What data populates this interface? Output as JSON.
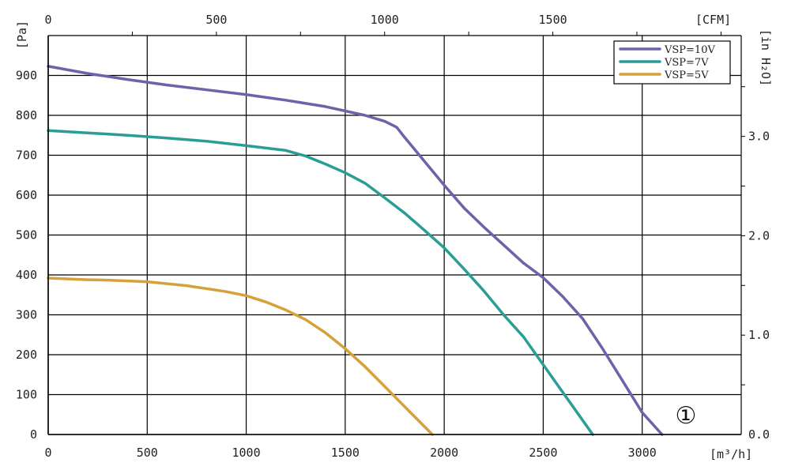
{
  "chart_data": {
    "type": "line",
    "xlabel_bottom": "[m³/h]",
    "xlabel_top": "[CFM]",
    "ylabel_left": "[Pa]",
    "ylabel_right": "[in H₂O]",
    "xlim": [
      0,
      3500
    ],
    "ylim": [
      0,
      1000
    ],
    "x_ticks": [
      "0",
      "500",
      "1000",
      "1500",
      "2000",
      "2500",
      "3000"
    ],
    "y_ticks": [
      "0",
      "100",
      "200",
      "300",
      "400",
      "500",
      "600",
      "700",
      "800",
      "900"
    ],
    "top_ticks": [
      "0",
      "500",
      "1000",
      "1500"
    ],
    "right_ticks": [
      "0.0",
      "1.0",
      "2.0",
      "3.0"
    ],
    "grid": true,
    "legend_position": "top-right",
    "marker_label": "①",
    "series": [
      {
        "name": "VSP=10V",
        "color": "#6b64a8",
        "x": [
          0,
          200,
          400,
          600,
          800,
          1000,
          1200,
          1400,
          1600,
          1700,
          1760,
          1800,
          1900,
          2000,
          2100,
          2200,
          2300,
          2400,
          2500,
          2600,
          2700,
          2800,
          2900,
          3000,
          3100
        ],
        "y": [
          923,
          905,
          890,
          876,
          864,
          852,
          838,
          822,
          800,
          785,
          770,
          745,
          685,
          625,
          568,
          520,
          475,
          430,
          393,
          345,
          290,
          215,
          135,
          55,
          0
        ]
      },
      {
        "name": "VSP=7V",
        "color": "#2a9d96",
        "x": [
          0,
          200,
          400,
          600,
          800,
          1000,
          1200,
          1300,
          1400,
          1500,
          1600,
          1700,
          1800,
          1900,
          2000,
          2100,
          2200,
          2300,
          2400,
          2500,
          2600,
          2700,
          2750
        ],
        "y": [
          762,
          756,
          750,
          743,
          735,
          724,
          712,
          698,
          678,
          656,
          630,
          593,
          555,
          512,
          468,
          415,
          360,
          300,
          245,
          175,
          105,
          35,
          0
        ]
      },
      {
        "name": "VSP=5V",
        "color": "#d6a13a",
        "x": [
          0,
          200,
          300,
          500,
          700,
          900,
          1000,
          1100,
          1200,
          1300,
          1400,
          1500,
          1600,
          1700,
          1800,
          1900,
          1940
        ],
        "y": [
          392,
          388,
          387,
          383,
          373,
          358,
          348,
          332,
          312,
          288,
          255,
          215,
          170,
          120,
          70,
          20,
          0
        ]
      }
    ]
  }
}
